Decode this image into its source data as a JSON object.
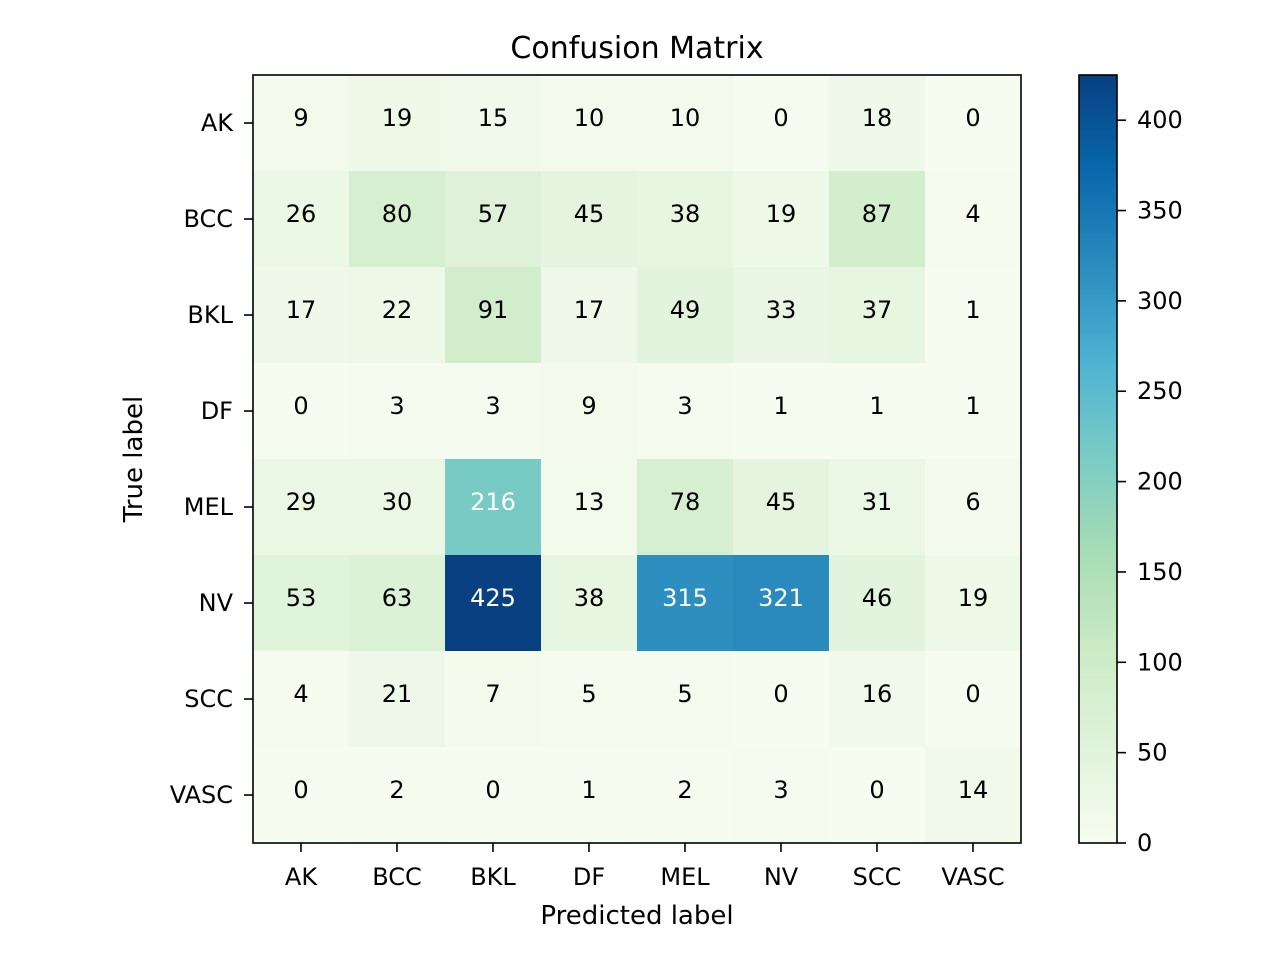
{
  "chart_data": {
    "type": "heatmap",
    "title": "Confusion Matrix",
    "xlabel": "Predicted label",
    "ylabel": "True label",
    "x_categories": [
      "AK",
      "BCC",
      "BKL",
      "DF",
      "MEL",
      "NV",
      "SCC",
      "VASC"
    ],
    "y_categories": [
      "AK",
      "BCC",
      "BKL",
      "DF",
      "MEL",
      "NV",
      "SCC",
      "VASC"
    ],
    "matrix": [
      [
        9,
        19,
        15,
        10,
        10,
        0,
        18,
        0
      ],
      [
        26,
        80,
        57,
        45,
        38,
        19,
        87,
        4
      ],
      [
        17,
        22,
        91,
        17,
        49,
        33,
        37,
        1
      ],
      [
        0,
        3,
        3,
        9,
        3,
        1,
        1,
        1
      ],
      [
        29,
        30,
        216,
        13,
        78,
        45,
        31,
        6
      ],
      [
        53,
        63,
        425,
        38,
        315,
        321,
        46,
        19
      ],
      [
        4,
        21,
        7,
        5,
        5,
        0,
        16,
        0
      ],
      [
        0,
        2,
        0,
        1,
        2,
        3,
        0,
        14
      ]
    ],
    "colormap": "GnBu",
    "color_range": [
      0,
      425
    ],
    "colorbar_ticks": [
      0,
      50,
      100,
      150,
      200,
      250,
      300,
      350,
      400
    ],
    "text_color_threshold": 212.5,
    "legend": "colorbar-right"
  }
}
